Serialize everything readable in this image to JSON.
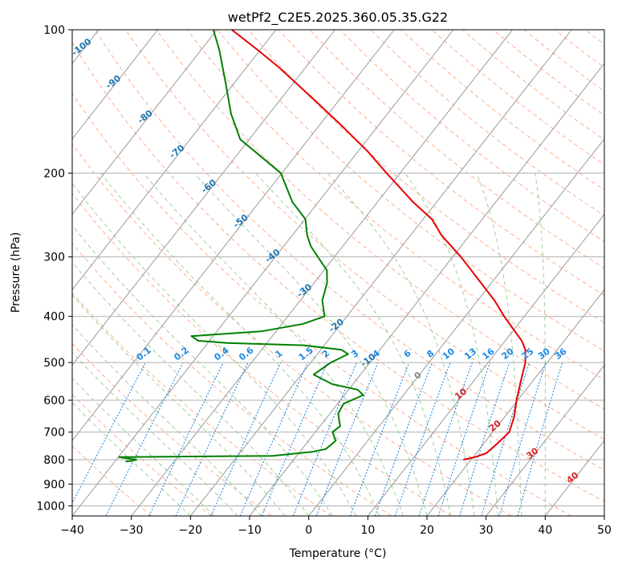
{
  "chart_data": {
    "type": "skew-t log-p sounding",
    "title": "wetPf2_C2E5.2025.360.05.35.G22",
    "xlabel": "Temperature (°C)",
    "ylabel": "Pressure (hPa)",
    "xlim": [
      -40,
      50
    ],
    "ylim": [
      1050,
      100
    ],
    "y_scale": "log",
    "x_ticks": [
      -40,
      -30,
      -20,
      -10,
      0,
      10,
      20,
      30,
      40,
      50
    ],
    "y_ticks": [
      1000,
      900,
      800,
      700,
      600,
      500,
      400,
      300,
      200,
      100
    ],
    "grid": true,
    "colors": {
      "temperature": "#e60000",
      "dewpoint": "#008000",
      "isotherm": "#999999",
      "dry_adiabat": "#ffad8c",
      "moist_adiabat": "#9ed09e",
      "mixing_ratio": "#1e88e5",
      "isotherm_label": "#1f77b4",
      "dry_adiabat_label": "#d62728"
    },
    "series": [
      {
        "key": "temperature",
        "points": [
          [
            800,
            18.7
          ],
          [
            790,
            20.3
          ],
          [
            775,
            21.7
          ],
          [
            740,
            22.3
          ],
          [
            700,
            22.8
          ],
          [
            650,
            21.6
          ],
          [
            600,
            19.8
          ],
          [
            550,
            18.1
          ],
          [
            500,
            16.3
          ],
          [
            470,
            14.6
          ],
          [
            450,
            12.8
          ],
          [
            430,
            10.4
          ],
          [
            400,
            6.6
          ],
          [
            370,
            2.8
          ],
          [
            340,
            -1.8
          ],
          [
            300,
            -8.6
          ],
          [
            270,
            -14.8
          ],
          [
            250,
            -18.5
          ],
          [
            230,
            -24.0
          ],
          [
            200,
            -32.3
          ],
          [
            180,
            -38.4
          ],
          [
            160,
            -45.8
          ],
          [
            140,
            -54.4
          ],
          [
            120,
            -64.5
          ],
          [
            110,
            -70.6
          ],
          [
            100,
            -77.5
          ]
        ]
      },
      {
        "key": "dewpoint",
        "points": [
          [
            807,
            -38.2
          ],
          [
            805,
            -37.3
          ],
          [
            800,
            -36.6
          ],
          [
            790,
            -39.9
          ],
          [
            785,
            -14.1
          ],
          [
            770,
            -7.9
          ],
          [
            760,
            -6.0
          ],
          [
            730,
            -5.4
          ],
          [
            700,
            -7.1
          ],
          [
            680,
            -6.6
          ],
          [
            640,
            -8.6
          ],
          [
            610,
            -9.0
          ],
          [
            585,
            -6.8
          ],
          [
            570,
            -8.5
          ],
          [
            555,
            -13.5
          ],
          [
            530,
            -17.9
          ],
          [
            500,
            -16.6
          ],
          [
            480,
            -14.8
          ],
          [
            470,
            -16.5
          ],
          [
            460,
            -23.5
          ],
          [
            455,
            -36.8
          ],
          [
            450,
            -41.9
          ],
          [
            440,
            -43.7
          ],
          [
            430,
            -32.5
          ],
          [
            415,
            -26.5
          ],
          [
            400,
            -23.8
          ],
          [
            370,
            -26.3
          ],
          [
            340,
            -27.8
          ],
          [
            320,
            -29.5
          ],
          [
            300,
            -32.8
          ],
          [
            285,
            -35.4
          ],
          [
            270,
            -37.5
          ],
          [
            250,
            -39.9
          ],
          [
            230,
            -44.4
          ],
          [
            200,
            -50.2
          ],
          [
            185,
            -55.6
          ],
          [
            170,
            -61.5
          ],
          [
            150,
            -66.5
          ],
          [
            130,
            -71.3
          ],
          [
            110,
            -77.0
          ],
          [
            100,
            -80.6
          ]
        ]
      }
    ],
    "isotherm_labels": [
      "-100",
      "-90",
      "-80",
      "-70",
      "-60",
      "-50",
      "-40",
      "-30",
      "-20",
      "-10"
    ],
    "zero_isotherm_label": "0",
    "dry_adiabat_labels": [
      "10",
      "20",
      "30",
      "40"
    ],
    "mixing_ratio_labels": [
      "0.1",
      "0.2",
      "0.4",
      "0.6",
      "1",
      "1.5",
      "2",
      "3",
      "4",
      "6",
      "8",
      "10",
      "13",
      "16",
      "20",
      "25",
      "30",
      "36"
    ]
  }
}
